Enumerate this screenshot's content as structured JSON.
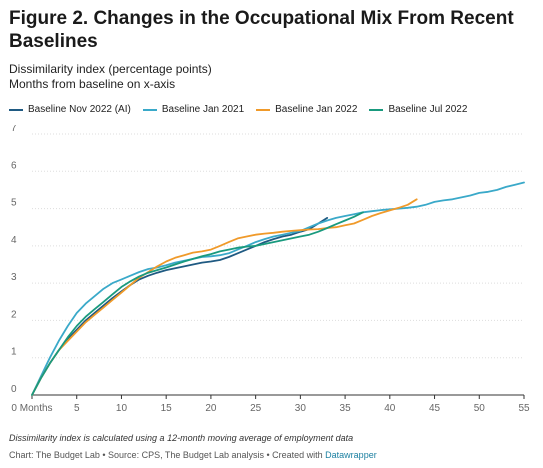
{
  "title": "Figure 2. Changes in the Occupational Mix From Recent Baselines",
  "subtitle_line1": "Dissimilarity index (percentage points)",
  "subtitle_line2": "Months from baseline on x-axis",
  "notes": "Dissimilarity index is calculated using a 12-month moving average of employment data",
  "credit_prefix": "Chart: The Budget Lab • Source: CPS, The Budget Lab analysis • Created with",
  "credit_link": "Datawrapper",
  "colors": {
    "nov2022": "#1f5a82",
    "jan2021": "#3aa9c9",
    "jan2022": "#f09a2a",
    "jul2022": "#199a7e",
    "grid": "#dddddd",
    "axis_text": "#666666"
  },
  "chart_data": {
    "type": "line",
    "xlabel": "",
    "ylabel": "",
    "xlim": [
      0,
      55
    ],
    "ylim": [
      0,
      7
    ],
    "x_ticks": [
      0,
      5,
      10,
      15,
      20,
      25,
      30,
      35,
      40,
      45,
      50,
      55
    ],
    "x_tick_labels": [
      "0 Months",
      "5",
      "10",
      "15",
      "20",
      "25",
      "30",
      "35",
      "40",
      "45",
      "50",
      "55"
    ],
    "y_ticks": [
      0,
      1,
      2,
      3,
      4,
      5,
      6,
      7
    ],
    "y_tick_labels": [
      "0",
      "1",
      "2",
      "3",
      "4",
      "5",
      "6",
      "7"
    ],
    "grid": true,
    "legend_position": "top",
    "series": [
      {
        "name": "Baseline Nov 2022 (AI)",
        "color_key": "nov2022",
        "x": [
          0,
          1,
          2,
          3,
          4,
          5,
          6,
          7,
          8,
          9,
          10,
          11,
          12,
          13,
          14,
          15,
          16,
          17,
          18,
          19,
          20,
          21,
          22,
          23,
          24,
          25,
          26,
          27,
          28,
          29,
          30,
          31,
          32,
          33
        ],
        "y": [
          0,
          0.45,
          0.85,
          1.2,
          1.5,
          1.75,
          2.0,
          2.2,
          2.4,
          2.6,
          2.78,
          2.95,
          3.1,
          3.2,
          3.28,
          3.35,
          3.4,
          3.45,
          3.5,
          3.55,
          3.58,
          3.62,
          3.7,
          3.8,
          3.9,
          4.0,
          4.1,
          4.18,
          4.25,
          4.3,
          4.38,
          4.45,
          4.6,
          4.75
        ]
      },
      {
        "name": "Baseline Jan 2021",
        "color_key": "jan2021",
        "x": [
          0,
          1,
          2,
          3,
          4,
          5,
          6,
          7,
          8,
          9,
          10,
          11,
          12,
          13,
          14,
          15,
          16,
          17,
          18,
          19,
          20,
          21,
          22,
          23,
          24,
          25,
          26,
          27,
          28,
          29,
          30,
          31,
          32,
          33,
          34,
          35,
          36,
          37,
          38,
          39,
          40,
          41,
          42,
          43,
          44,
          45,
          46,
          47,
          48,
          49,
          50,
          51,
          52,
          53,
          54,
          55
        ],
        "y": [
          0,
          0.5,
          1.0,
          1.45,
          1.85,
          2.2,
          2.45,
          2.65,
          2.85,
          3.0,
          3.1,
          3.2,
          3.3,
          3.38,
          3.42,
          3.48,
          3.55,
          3.6,
          3.65,
          3.7,
          3.72,
          3.75,
          3.8,
          3.9,
          4.0,
          4.1,
          4.18,
          4.25,
          4.3,
          4.35,
          4.4,
          4.5,
          4.6,
          4.68,
          4.75,
          4.8,
          4.85,
          4.9,
          4.93,
          4.96,
          4.98,
          5.0,
          5.02,
          5.05,
          5.1,
          5.18,
          5.22,
          5.25,
          5.3,
          5.35,
          5.42,
          5.45,
          5.5,
          5.58,
          5.64,
          5.7
        ]
      },
      {
        "name": "Baseline Jan 2022",
        "color_key": "jan2022",
        "x": [
          0,
          1,
          2,
          3,
          4,
          5,
          6,
          7,
          8,
          9,
          10,
          11,
          12,
          13,
          14,
          15,
          16,
          17,
          18,
          19,
          20,
          21,
          22,
          23,
          24,
          25,
          26,
          27,
          28,
          29,
          30,
          31,
          32,
          33,
          34,
          35,
          36,
          37,
          38,
          39,
          40,
          41,
          42,
          43
        ],
        "y": [
          0,
          0.45,
          0.85,
          1.2,
          1.45,
          1.7,
          1.95,
          2.15,
          2.35,
          2.55,
          2.75,
          2.95,
          3.15,
          3.3,
          3.45,
          3.58,
          3.68,
          3.75,
          3.82,
          3.85,
          3.9,
          4.0,
          4.1,
          4.2,
          4.25,
          4.3,
          4.33,
          4.35,
          4.38,
          4.4,
          4.42,
          4.44,
          4.45,
          4.48,
          4.5,
          4.55,
          4.6,
          4.7,
          4.8,
          4.88,
          4.95,
          5.02,
          5.1,
          5.25
        ]
      },
      {
        "name": "Baseline Jul 2022",
        "color_key": "jul2022",
        "x": [
          0,
          1,
          2,
          3,
          4,
          5,
          6,
          7,
          8,
          9,
          10,
          11,
          12,
          13,
          14,
          15,
          16,
          17,
          18,
          19,
          20,
          21,
          22,
          23,
          24,
          25,
          26,
          27,
          28,
          29,
          30,
          31,
          32,
          33,
          34,
          35,
          36,
          37
        ],
        "y": [
          0,
          0.45,
          0.85,
          1.2,
          1.55,
          1.85,
          2.1,
          2.3,
          2.5,
          2.7,
          2.9,
          3.05,
          3.18,
          3.28,
          3.35,
          3.42,
          3.5,
          3.58,
          3.65,
          3.72,
          3.78,
          3.85,
          3.9,
          3.95,
          3.98,
          4.0,
          4.05,
          4.1,
          4.15,
          4.2,
          4.25,
          4.3,
          4.38,
          4.48,
          4.58,
          4.68,
          4.78,
          4.9
        ]
      }
    ]
  }
}
